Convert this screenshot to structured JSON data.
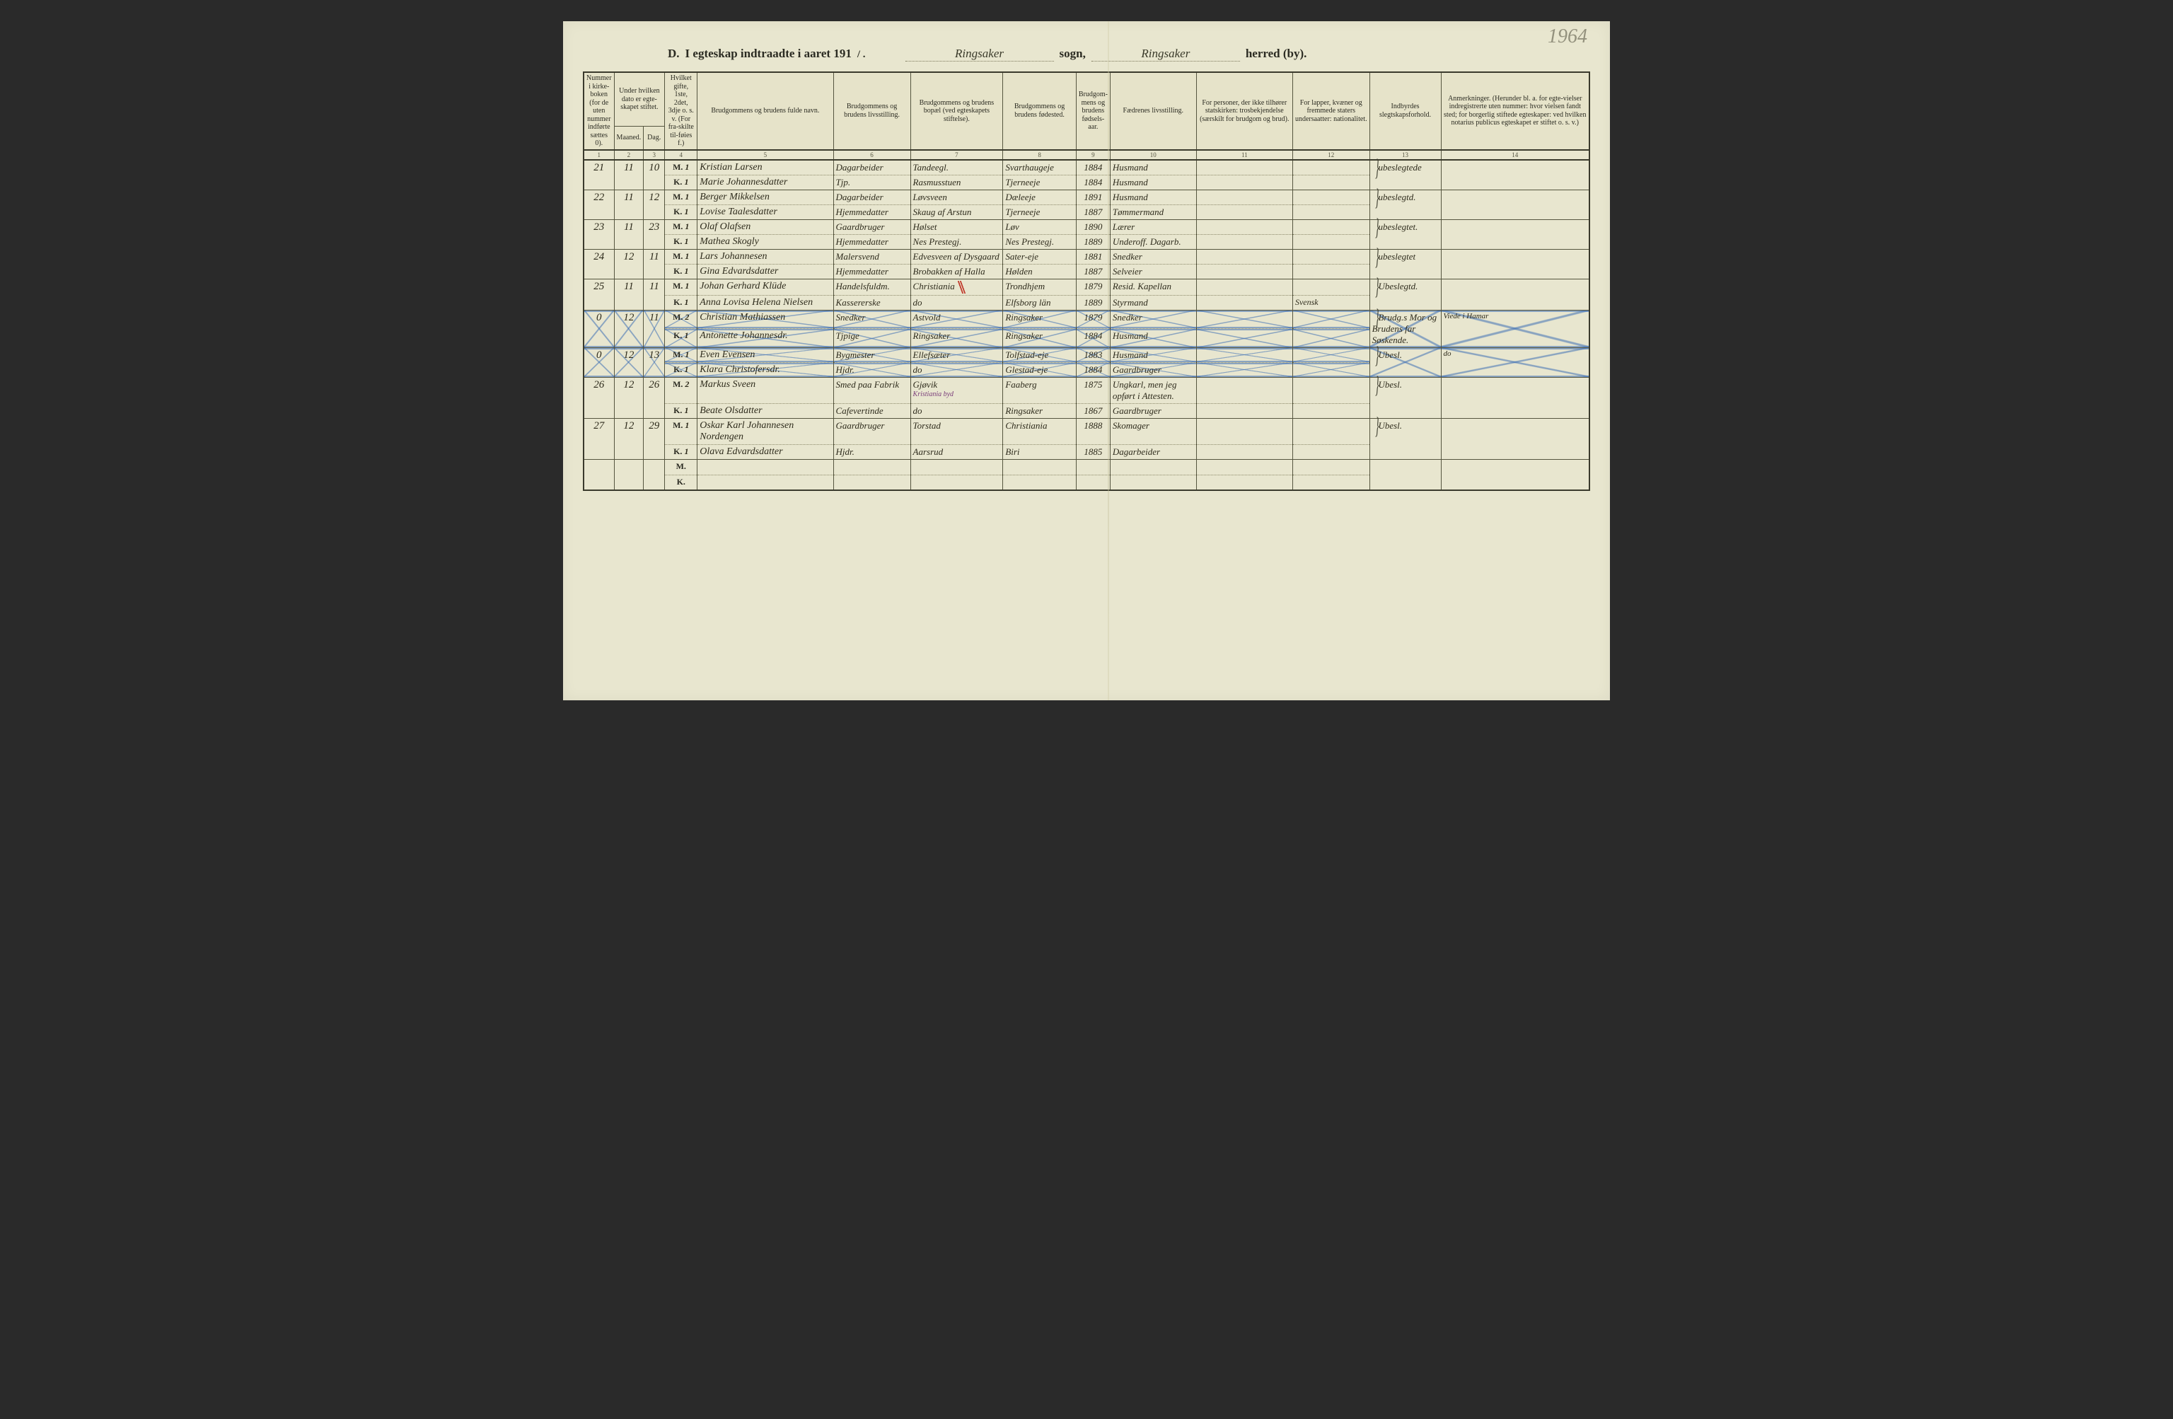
{
  "page": {
    "pencil_year": "1964",
    "title_prefix": "D.",
    "title_text": "I egteskap indtraadte i aaret 191",
    "year_suffix": "/ .",
    "sogn_label": "sogn,",
    "herred_label": "herred (by).",
    "sogn_value": "Ringsaker",
    "herred_value": "Ringsaker"
  },
  "columns": {
    "1": "Nummer i kirke-boken (for de uten nummer indførte sættes 0).",
    "2a": "Under hvilken dato er egte-skapet stiftet.",
    "2_sub_a": "Maaned.",
    "2_sub_b": "Dag.",
    "3": "Hvilket gifte, 1ste, 2det, 3dje o. s. v. (For fra-skilte til-føies f.)",
    "4": "Brudgommens og brudens fulde navn.",
    "5": "Brudgommens og brudens livsstilling.",
    "6": "Brudgommens og brudens bopæl (ved egteskapets stiftelse).",
    "7": "Brudgommens og brudens fødested.",
    "8": "Brudgom-mens og brudens fødsels-aar.",
    "9": "Fædrenes livsstilling.",
    "10": "For personer, der ikke tilhører statskirken: trosbekjendelse (særskilt for brudgom og brud).",
    "11": "For lapper, kvæner og fremmede staters undersaatter: nationalitet.",
    "12": "Indbyrdes slegtskapsforhold.",
    "13": "Anmerkninger. (Herunder bl. a. for egte-vielser indregistrerte uten nummer: hvor vielsen fandt sted; for borgerlig stiftede egteskaper: ved hvilken notarius publicus egteskapet er stiftet o. s. v.)"
  },
  "colnums": [
    "1",
    "2",
    "3",
    "4",
    "5",
    "6",
    "7",
    "8",
    "9",
    "10",
    "11",
    "12",
    "13",
    "14"
  ],
  "mk": {
    "m": "M.",
    "k": "K."
  },
  "entries": [
    {
      "num": "21",
      "mnd": "11",
      "dag": "10",
      "m": {
        "g": "1",
        "navn": "Kristian Larsen",
        "stilling": "Dagarbeider",
        "bopel": "Tandeegl.",
        "fsted": "Svarthaugeje",
        "aar": "1884",
        "far": "Husmand"
      },
      "k": {
        "g": "1",
        "navn": "Marie Johannesdatter",
        "stilling": "Tjp.",
        "bopel": "Rasmusstuen",
        "fsted": "Tjerneeje",
        "aar": "1884",
        "far": "Husmand"
      },
      "slegt": "ubeslegtede"
    },
    {
      "num": "22",
      "mnd": "11",
      "dag": "12",
      "m": {
        "g": "1",
        "navn": "Berger Mikkelsen",
        "stilling": "Dagarbeider",
        "bopel": "Løvsveen",
        "fsted": "Dæleeje",
        "aar": "1891",
        "far": "Husmand"
      },
      "k": {
        "g": "1",
        "navn": "Lovise Taalesdatter",
        "stilling": "Hjemmedatter",
        "bopel": "Skaug af Arstun",
        "fsted": "Tjerneeje",
        "aar": "1887",
        "far": "Tømmermand"
      },
      "slegt": "ubeslegtd."
    },
    {
      "num": "23",
      "mnd": "11",
      "dag": "23",
      "m": {
        "g": "1",
        "navn": "Olaf Olafsen",
        "stilling": "Gaardbruger",
        "bopel": "Hølset",
        "fsted": "Løv",
        "aar": "1890",
        "far": "Lærer"
      },
      "k": {
        "g": "1",
        "navn": "Mathea Skogly",
        "stilling": "Hjemmedatter",
        "bopel": "Nes Prestegj.",
        "fsted": "Nes Prestegj.",
        "aar": "1889",
        "far": "Underoff. Dagarb."
      },
      "slegt": "ubeslegtet."
    },
    {
      "num": "24",
      "mnd": "12",
      "dag": "11",
      "m": {
        "g": "1",
        "navn": "Lars Johannesen",
        "stilling": "Malersvend",
        "bopel": "Edvesveen af Dysgaard",
        "fsted": "Sater-eje",
        "aar": "1881",
        "far": "Snedker"
      },
      "k": {
        "g": "1",
        "navn": "Gina Edvardsdatter",
        "stilling": "Hjemmedatter",
        "bopel": "Brobakken af Halla",
        "fsted": "Hølden",
        "aar": "1887",
        "far": "Selveier"
      },
      "slegt": "ubeslegtet"
    },
    {
      "num": "25",
      "mnd": "11",
      "dag": "11",
      "m": {
        "g": "1",
        "navn": "Johan Gerhard Klüde",
        "stilling": "Handelsfuldm.",
        "bopel": "Christiania",
        "bopel_red": true,
        "fsted": "Trondhjem",
        "aar": "1879",
        "far": "Resid. Kapellan"
      },
      "k": {
        "g": "1",
        "navn": "Anna Lovisa Helena Nielsen",
        "stilling": "Kassererske",
        "bopel": "do",
        "fsted": "Elfsborg län",
        "aar": "1889",
        "far": "Styrmand"
      },
      "nat_k": "Svensk",
      "slegt": "Ubeslegtd."
    },
    {
      "num": "0",
      "mnd": "12",
      "dag": "11",
      "struck": true,
      "m": {
        "g": "2",
        "navn": "Christian Mathiassen",
        "stilling": "Snedker",
        "bopel": "Astvold",
        "fsted": "Ringsaker",
        "aar": "1879",
        "far": "Snedker"
      },
      "k": {
        "g": "1",
        "navn": "Antonette Johannesdr.",
        "stilling": "Tjpige",
        "bopel": "Ringsaker",
        "fsted": "Ringsaker",
        "aar": "1884",
        "far": "Husmand"
      },
      "slegt": "Brudg.s Mor og Brudens far Søskende.",
      "anm": "Viede i Hamar"
    },
    {
      "num": "0",
      "mnd": "12",
      "dag": "13",
      "struck": true,
      "m": {
        "g": "1",
        "navn": "Even Evensen",
        "stilling": "Bygmester",
        "bopel": "Ellefsæter",
        "fsted": "Tolfstad-eje",
        "aar": "1883",
        "far": "Husmand"
      },
      "k": {
        "g": "1",
        "navn": "Klara Christofersdr.",
        "stilling": "Hjdr.",
        "bopel": "do",
        "fsted": "Glestad-eje",
        "aar": "1884",
        "far": "Gaardbruger"
      },
      "slegt": "Ubesl.",
      "anm": "do"
    },
    {
      "num": "26",
      "mnd": "12",
      "dag": "26",
      "m": {
        "g": "2",
        "navn": "Markus Sveen",
        "stilling": "Smed paa Fabrik",
        "bopel": "Gjøvik",
        "bopel_note": "Kristiania byd",
        "fsted": "Faaberg",
        "aar": "1875",
        "far": "Ungkarl, men jeg opført i Attesten."
      },
      "k": {
        "g": "1",
        "navn": "Beate Olsdatter",
        "stilling": "Cafevertinde",
        "bopel": "do",
        "fsted": "Ringsaker",
        "aar": "1867",
        "far": "Gaardbruger"
      },
      "slegt": "Ubesl."
    },
    {
      "num": "27",
      "mnd": "12",
      "dag": "29",
      "m": {
        "g": "1",
        "navn": "Oskar Karl Johannesen Nordengen",
        "stilling": "Gaardbruger",
        "bopel": "Torstad",
        "fsted": "Christiania",
        "aar": "1888",
        "far": "Skomager"
      },
      "k": {
        "g": "1",
        "navn": "Olava Edvardsdatter",
        "stilling": "Hjdr.",
        "bopel": "Aarsrud",
        "fsted": "Biri",
        "aar": "1885",
        "far": "Dagarbeider"
      },
      "slegt": "Ubesl."
    }
  ]
}
